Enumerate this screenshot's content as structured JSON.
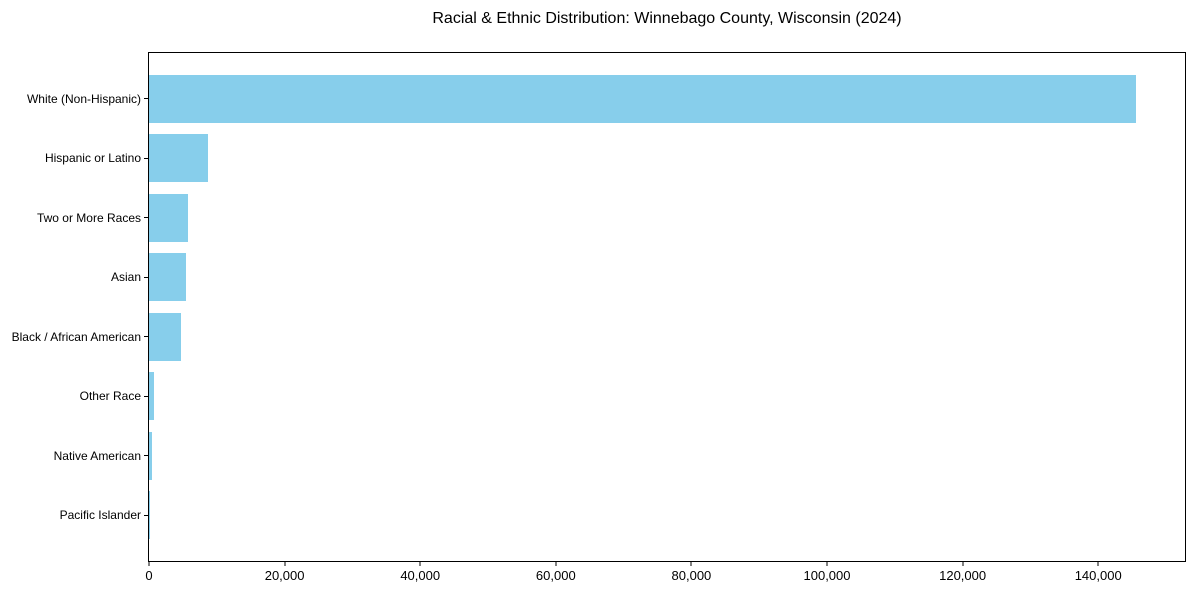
{
  "chart_data": {
    "type": "bar",
    "orientation": "horizontal",
    "title": "Racial & Ethnic Distribution: Winnebago County, Wisconsin (2024)",
    "categories": [
      "White (Non-Hispanic)",
      "Hispanic or Latino",
      "Two or More Races",
      "Asian",
      "Black / African American",
      "Other Race",
      "Native American",
      "Pacific Islander"
    ],
    "values": [
      145500,
      8700,
      5800,
      5400,
      4700,
      700,
      480,
      60
    ],
    "xlabel": "",
    "ylabel": "",
    "xlim": [
      0,
      152800
    ],
    "xticks": [
      0,
      20000,
      40000,
      60000,
      80000,
      100000,
      120000,
      140000
    ],
    "xtick_labels": [
      "0",
      "20,000",
      "40,000",
      "60,000",
      "80,000",
      "100,000",
      "120,000",
      "140,000"
    ],
    "bar_color": "#87CEEB",
    "background_color": "#ffffff",
    "axis_color": "#000000",
    "grid": false,
    "legend": "none"
  }
}
